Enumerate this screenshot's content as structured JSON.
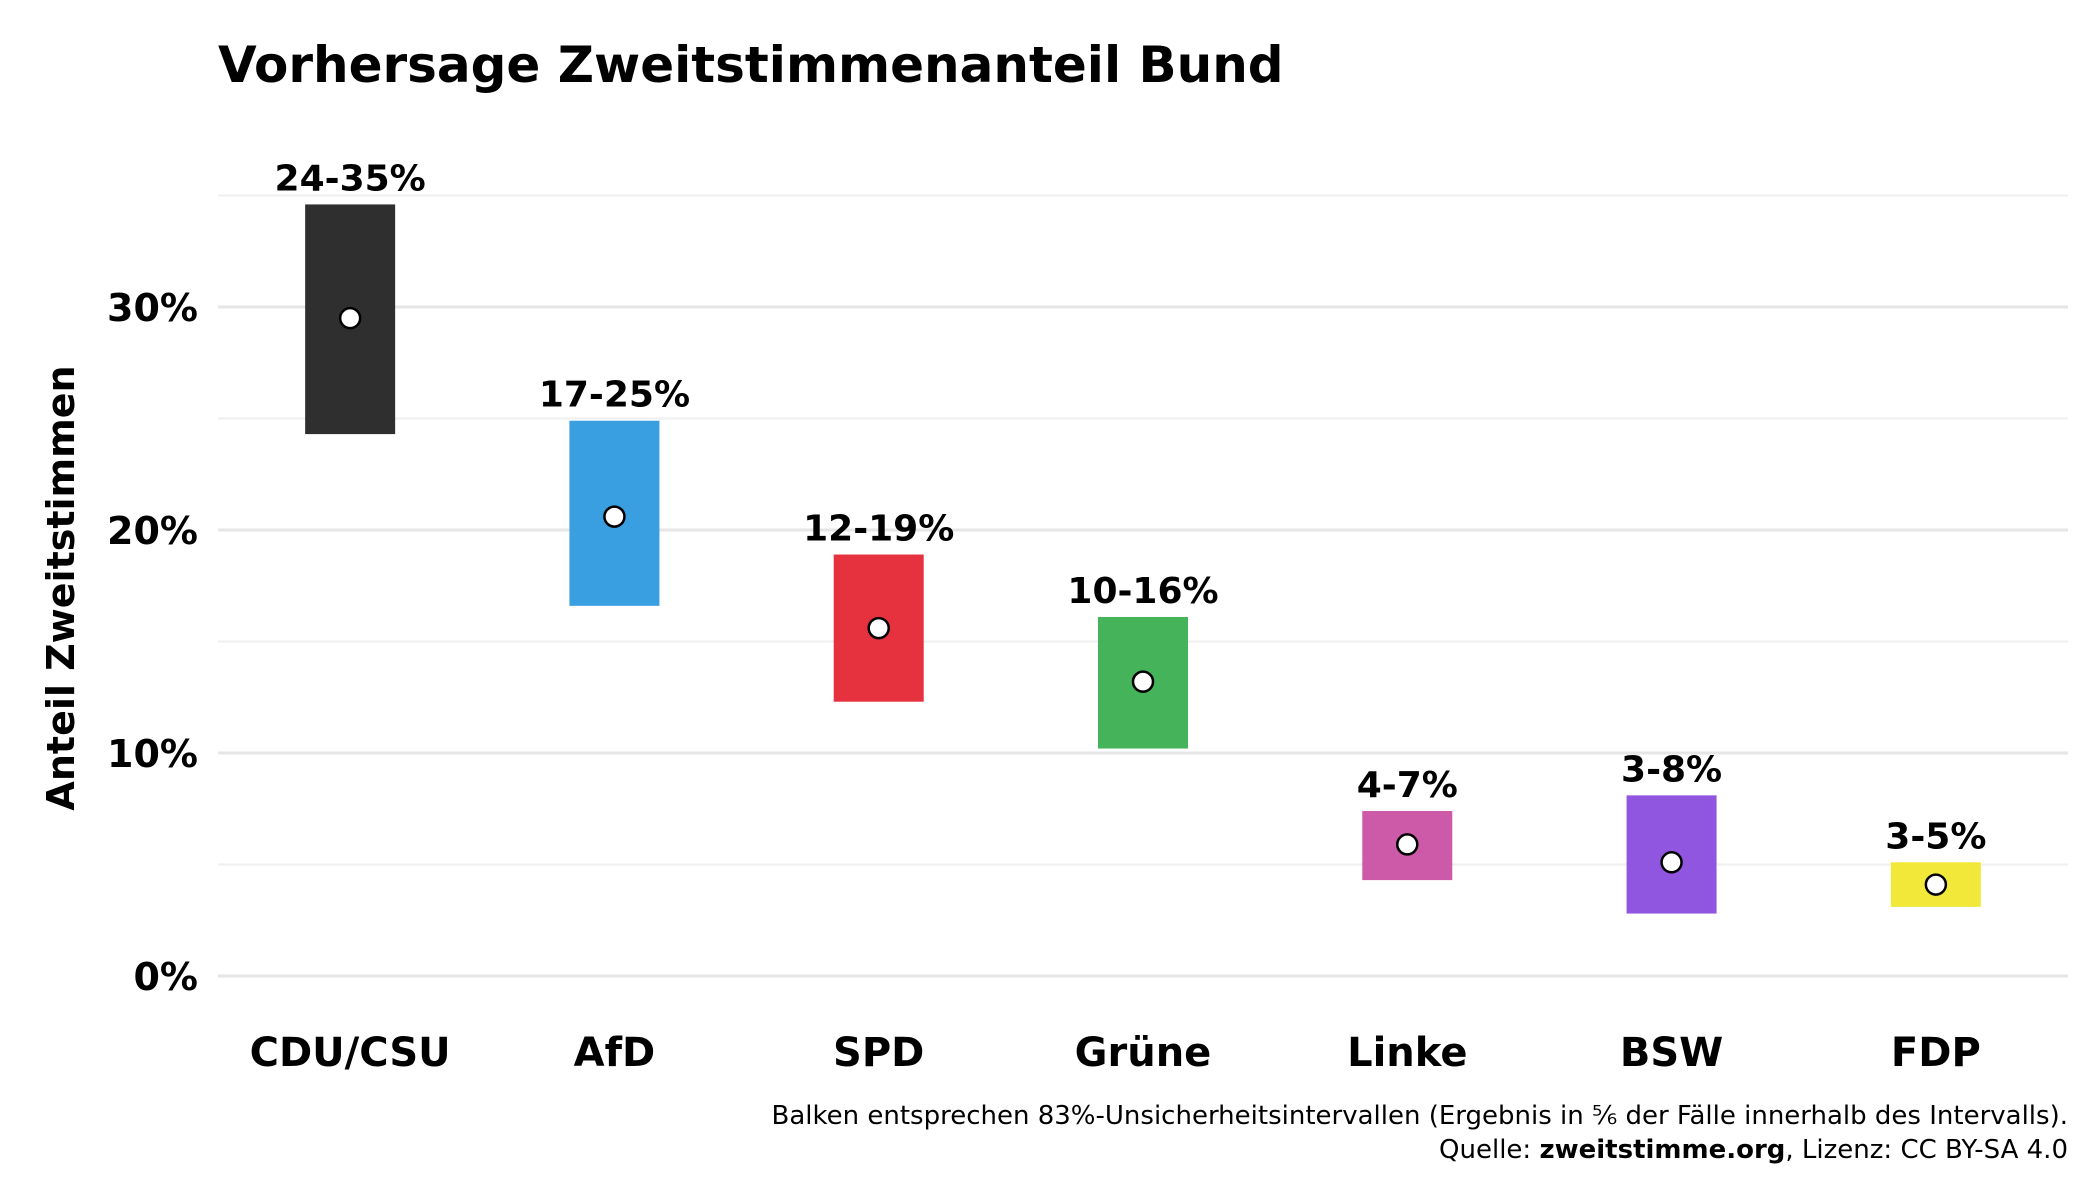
{
  "chart_data": {
    "type": "bar",
    "title": "Vorhersage Zweitstimmenanteil Bund",
    "ylabel": "Anteil Zweitstimmen",
    "xlabel": "",
    "ylim": [
      0,
      35
    ],
    "yticks": [
      0,
      10,
      20,
      30
    ],
    "ytick_labels": [
      "0%",
      "10%",
      "20%",
      "30%"
    ],
    "grid": true,
    "categories": [
      "CDU/CSU",
      "AfD",
      "SPD",
      "Grüne",
      "Linke",
      "BSW",
      "FDP"
    ],
    "series": [
      {
        "low": [
          24.3,
          16.6,
          12.3,
          10.2,
          4.3,
          2.8,
          3.1
        ],
        "high": [
          34.6,
          24.9,
          18.9,
          16.1,
          7.4,
          8.1,
          5.1
        ],
        "point": [
          29.5,
          20.6,
          15.6,
          13.2,
          5.9,
          5.1,
          4.1
        ],
        "labels": [
          "24-35%",
          "17-25%",
          "12-19%",
          "10-16%",
          "4-7%",
          "3-8%",
          "3-5%"
        ],
        "colors": [
          "#2f2f2f",
          "#3a9fe0",
          "#e6323f",
          "#45b35a",
          "#cc5aa8",
          "#9156e0",
          "#f2e83a"
        ]
      }
    ],
    "caption_line1": "Balken entsprechen 83%-Unsicherheitsintervallen (Ergebnis in ⅚ der Fälle innerhalb des Intervalls).",
    "caption_line2_prefix": "Quelle: ",
    "caption_line2_source": "zweitstimme.org",
    "caption_line2_suffix": ", Lizenz: CC BY-SA 4.0"
  }
}
